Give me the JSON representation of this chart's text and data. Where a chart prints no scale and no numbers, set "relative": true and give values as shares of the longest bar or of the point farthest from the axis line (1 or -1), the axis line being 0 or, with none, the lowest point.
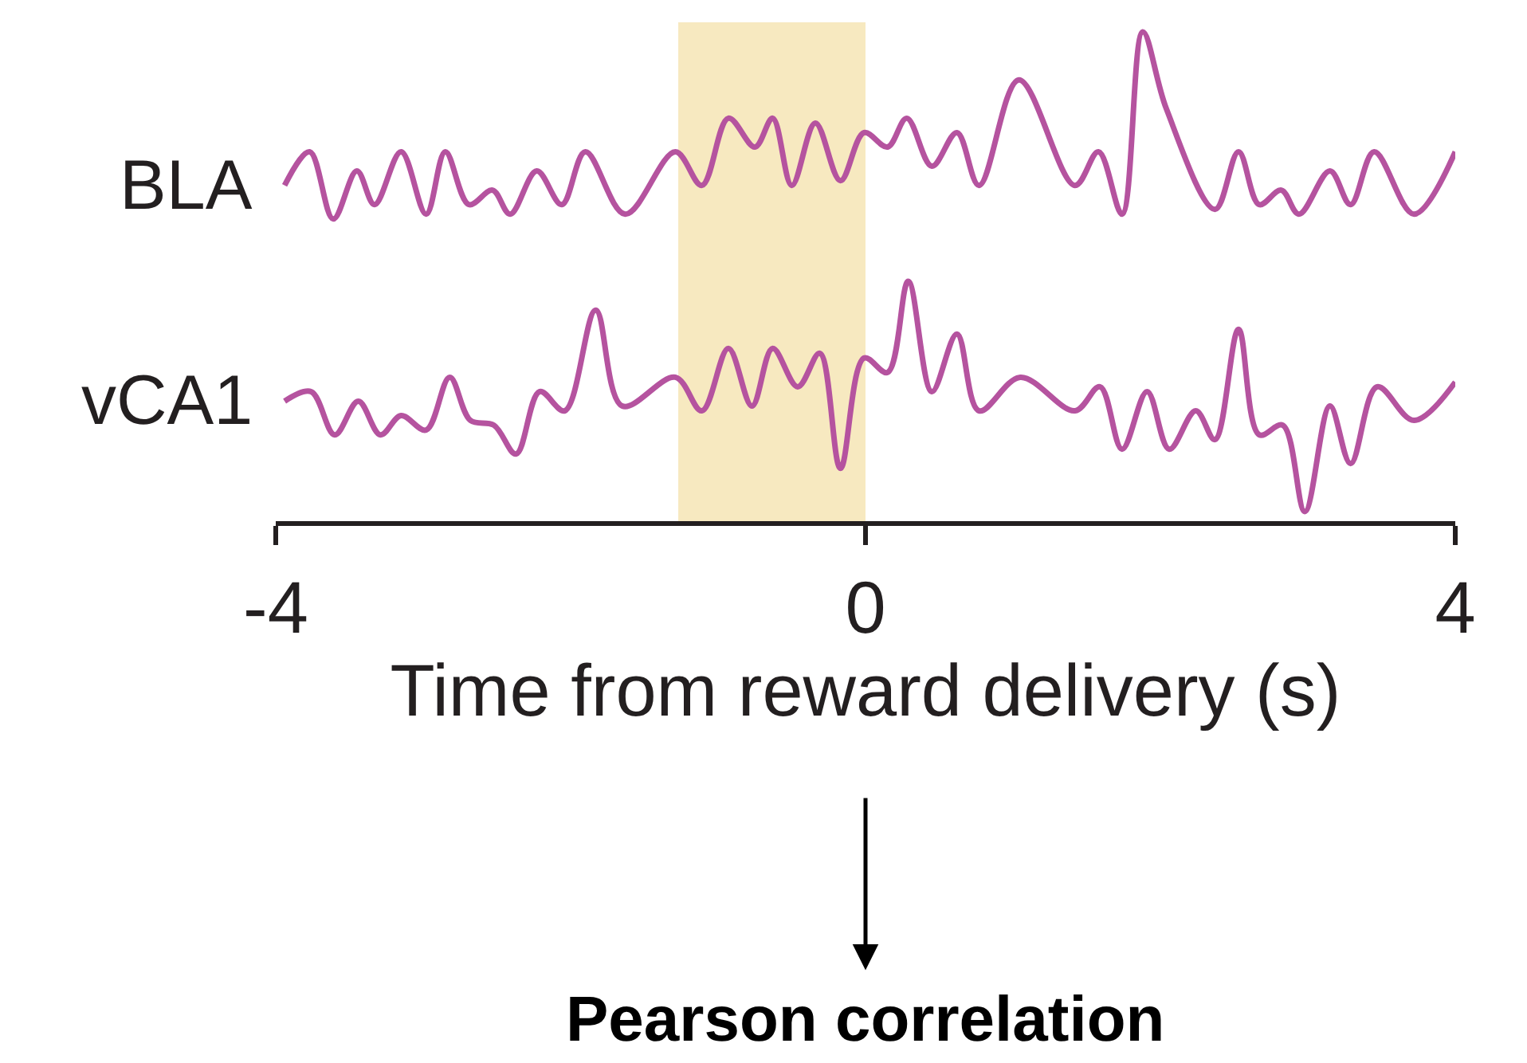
{
  "chart_data": {
    "type": "line",
    "relative": true,
    "xlabel": "Time from reward delivery (s)",
    "xlim": [
      -4,
      4
    ],
    "xticks": [
      -4,
      0,
      4
    ],
    "grid": false,
    "legend": false,
    "marker": "none",
    "line_style": "solid",
    "bands": [
      {
        "axis": "x",
        "from": -1.27,
        "to": 0,
        "color": "#f5e3b0"
      }
    ],
    "annotations": [
      "Pearson correlation"
    ],
    "series": [
      {
        "name": "BLA",
        "color": "#b5539f",
        "x": [
          -3.94,
          -3.77,
          -3.61,
          -3.45,
          -3.33,
          -3.15,
          -2.98,
          -2.85,
          -2.69,
          -2.53,
          -2.41,
          -2.23,
          -2.06,
          -1.9,
          -1.63,
          -1.29,
          -1.11,
          -0.93,
          -0.75,
          -0.63,
          -0.5,
          -0.34,
          -0.17,
          -0.01,
          0.15,
          0.28,
          0.45,
          0.62,
          0.77,
          1.04,
          1.42,
          1.58,
          1.74,
          1.88,
          2.04,
          2.37,
          2.53,
          2.67,
          2.82,
          2.94,
          3.15,
          3.29,
          3.45,
          3.72,
          4.0
        ],
        "values": [
          0.68,
          0.75,
          0.61,
          0.71,
          0.64,
          0.75,
          0.62,
          0.75,
          0.64,
          0.67,
          0.62,
          0.71,
          0.64,
          0.75,
          0.62,
          0.75,
          0.68,
          0.82,
          0.76,
          0.82,
          0.68,
          0.81,
          0.69,
          0.79,
          0.76,
          0.82,
          0.72,
          0.79,
          0.68,
          0.9,
          0.68,
          0.75,
          0.62,
          1.0,
          0.84,
          0.63,
          0.75,
          0.64,
          0.67,
          0.62,
          0.71,
          0.64,
          0.75,
          0.62,
          0.75
        ]
      },
      {
        "name": "vCA1",
        "color": "#b5539f",
        "x": [
          -3.94,
          -3.76,
          -3.6,
          -3.44,
          -3.29,
          -3.15,
          -2.98,
          -2.82,
          -2.68,
          -2.52,
          -2.37,
          -2.21,
          -2.04,
          -1.83,
          -1.65,
          -1.29,
          -1.11,
          -0.93,
          -0.77,
          -0.63,
          -0.46,
          -0.31,
          -0.17,
          -0.01,
          0.15,
          0.29,
          0.45,
          0.62,
          0.77,
          1.05,
          1.42,
          1.59,
          1.74,
          1.91,
          2.06,
          2.24,
          2.37,
          2.53,
          2.67,
          2.83,
          2.98,
          3.15,
          3.29,
          3.47,
          3.72,
          4.0
        ],
        "values": [
          0.23,
          0.25,
          0.16,
          0.23,
          0.16,
          0.2,
          0.17,
          0.28,
          0.19,
          0.18,
          0.12,
          0.25,
          0.21,
          0.42,
          0.22,
          0.28,
          0.21,
          0.34,
          0.22,
          0.34,
          0.26,
          0.33,
          0.09,
          0.32,
          0.29,
          0.48,
          0.25,
          0.37,
          0.21,
          0.28,
          0.21,
          0.26,
          0.13,
          0.25,
          0.13,
          0.21,
          0.15,
          0.38,
          0.16,
          0.18,
          0.0,
          0.22,
          0.1,
          0.26,
          0.19,
          0.27
        ]
      }
    ]
  }
}
